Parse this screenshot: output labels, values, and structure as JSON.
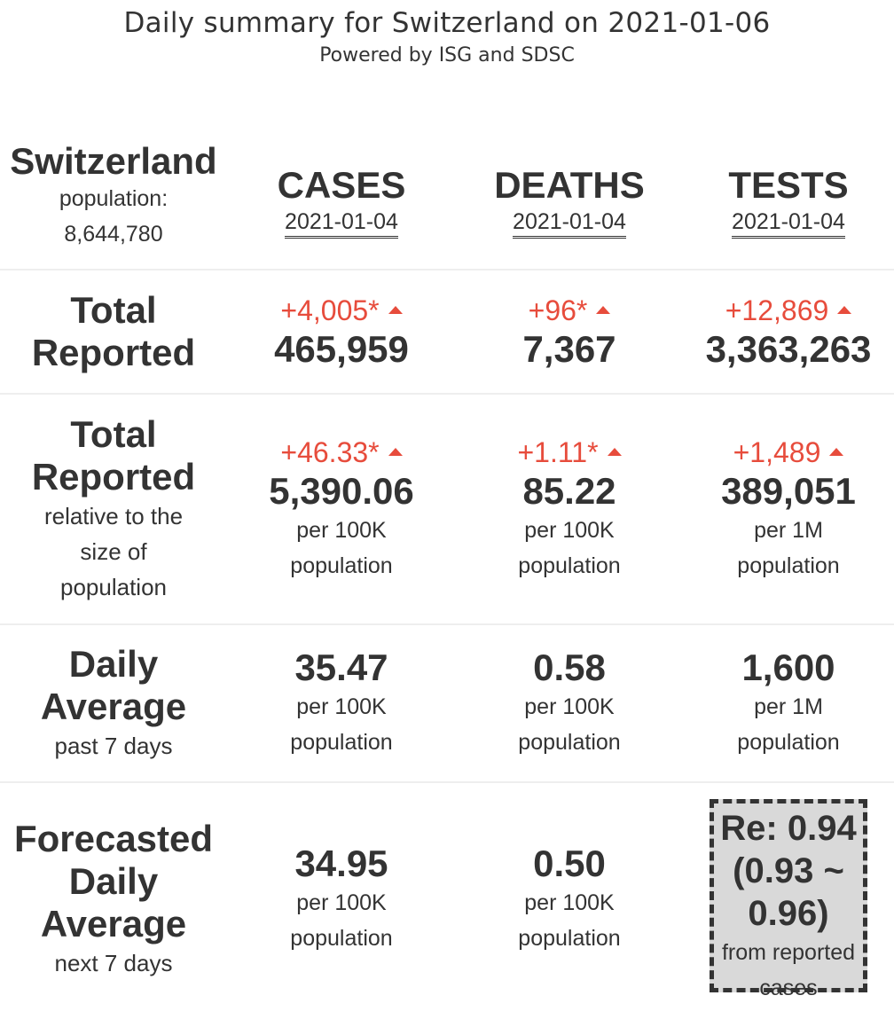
{
  "header": {
    "title": "Daily summary for Switzerland on 2021-01-06",
    "subtitle": "Powered by ISG and SDSC"
  },
  "country": {
    "name": "Switzerland",
    "population_label": "population:",
    "population": "8,644,780"
  },
  "columns": [
    {
      "label": "CASES",
      "date": "2021-01-04"
    },
    {
      "label": "DEATHS",
      "date": "2021-01-04"
    },
    {
      "label": "TESTS",
      "date": "2021-01-04"
    }
  ],
  "rows": {
    "total_reported": {
      "label": [
        "Total",
        "Reported"
      ],
      "cells": [
        {
          "delta": "+4,005*",
          "value": "465,959"
        },
        {
          "delta": "+96*",
          "value": "7,367"
        },
        {
          "delta": "+12,869",
          "value": "3,363,263"
        }
      ]
    },
    "relative": {
      "label": [
        "Total",
        "Reported"
      ],
      "sublabel": [
        "relative to the",
        "size of",
        "population"
      ],
      "cells": [
        {
          "delta": "+46.33*",
          "value": "5,390.06",
          "unit1": "per 100K",
          "unit2": "population"
        },
        {
          "delta": "+1.11*",
          "value": "85.22",
          "unit1": "per 100K",
          "unit2": "population"
        },
        {
          "delta": "+1,489",
          "value": "389,051",
          "unit1": "per 1M",
          "unit2": "population"
        }
      ]
    },
    "daily_average": {
      "label": [
        "Daily",
        "Average"
      ],
      "sublabel": "past 7 days",
      "cells": [
        {
          "value": "35.47",
          "unit1": "per 100K",
          "unit2": "population"
        },
        {
          "value": "0.58",
          "unit1": "per 100K",
          "unit2": "population"
        },
        {
          "value": "1,600",
          "unit1": "per 1M",
          "unit2": "population"
        }
      ]
    },
    "forecast": {
      "label": [
        "Forecasted",
        "Daily",
        "Average"
      ],
      "sublabel": "next 7 days",
      "cells": [
        {
          "value": "34.95",
          "unit1": "per 100K",
          "unit2": "population"
        },
        {
          "value": "0.50",
          "unit1": "per 100K",
          "unit2": "population"
        }
      ],
      "re": {
        "line1": "Re: 0.94",
        "line2": "(0.93 ~",
        "line3": "0.96)",
        "note1": "from reported",
        "note2": "cases"
      }
    }
  },
  "colors": {
    "text": "#333333",
    "increase": "#e74c3c",
    "re_box_bg": "#d9d9d9",
    "separator": "#eeeeee"
  },
  "icons": {
    "increase": "triangle-up-icon"
  }
}
